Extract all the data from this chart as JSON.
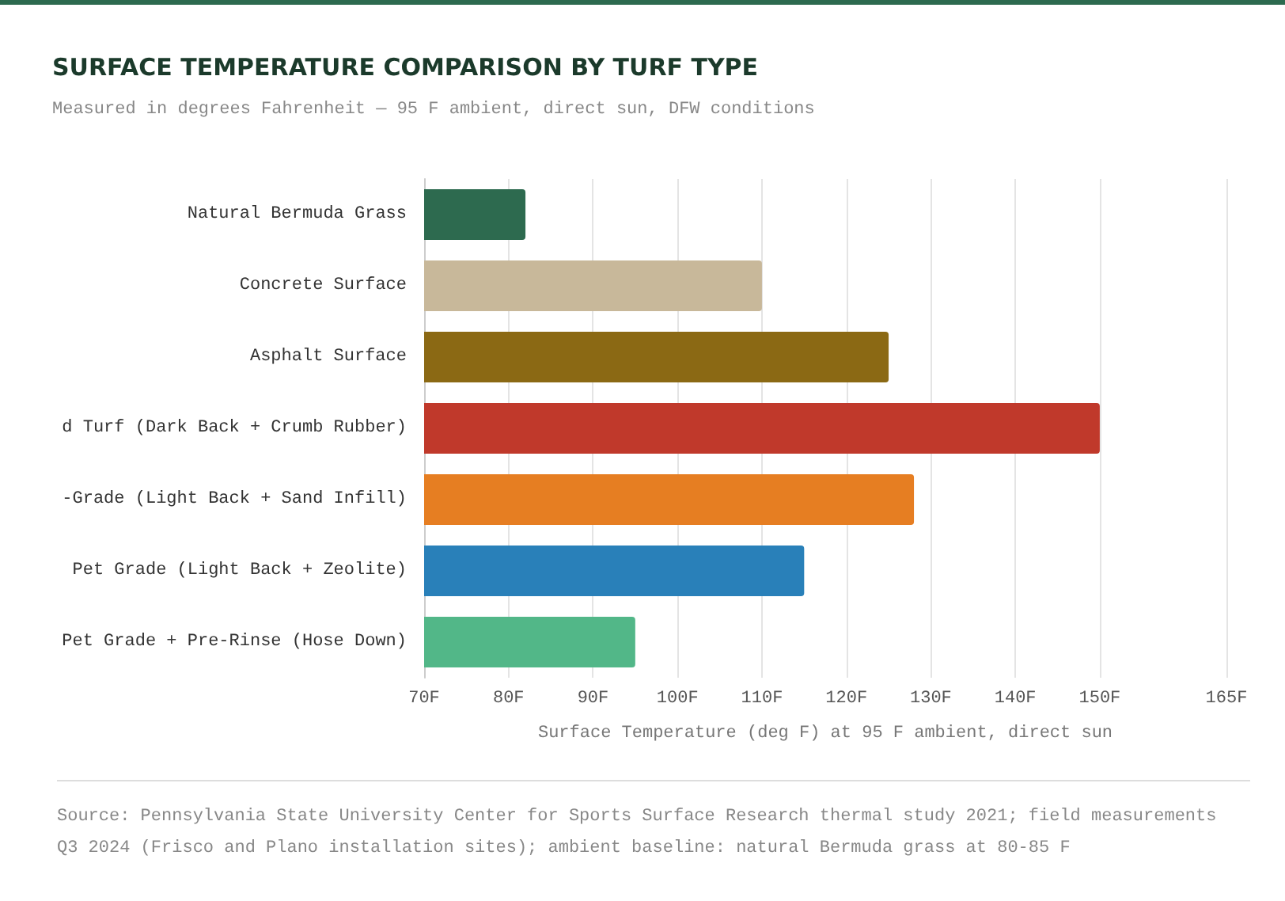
{
  "chart_data": {
    "type": "bar",
    "orientation": "horizontal",
    "title": "SURFACE TEMPERATURE COMPARISON BY TURF TYPE",
    "subtitle": "Measured in degrees Fahrenheit — 95 F ambient, direct sun, DFW conditions",
    "xlabel": "Surface Temperature (deg F) at 95 F ambient, direct sun",
    "categories": [
      "Natural Bermuda Grass",
      "Concrete Surface",
      "Asphalt Surface",
      "d Turf (Dark Back + Crumb Rubber)",
      "-Grade (Light Back + Sand Infill)",
      "Pet Grade (Light Back + Zeolite)",
      "Pet Grade + Pre-Rinse (Hose Down)"
    ],
    "values": [
      82,
      110,
      125,
      150,
      128,
      115,
      95
    ],
    "colors": [
      "#2d6a4f",
      "#c8b89a",
      "#8b6914",
      "#c0392b",
      "#e67e22",
      "#2980b9",
      "#52b788"
    ],
    "xlim": [
      70,
      165
    ],
    "xticks": [
      {
        "value": 70,
        "label": "70F"
      },
      {
        "value": 80,
        "label": "80F"
      },
      {
        "value": 90,
        "label": "90F"
      },
      {
        "value": 100,
        "label": "100F"
      },
      {
        "value": 110,
        "label": "110F"
      },
      {
        "value": 120,
        "label": "120F"
      },
      {
        "value": 130,
        "label": "130F"
      },
      {
        "value": 140,
        "label": "140F"
      },
      {
        "value": 150,
        "label": "150F"
      },
      {
        "value": 165,
        "label": "165F"
      }
    ],
    "grid": "x",
    "annotations": [
      "Source: Pennsylvania State University Center for Sports Surface Research thermal study 2021; field measurements Q3 2024 (Frisco and Plano installation sites); ambient baseline: natural Bermuda grass at 80-85 F"
    ]
  }
}
